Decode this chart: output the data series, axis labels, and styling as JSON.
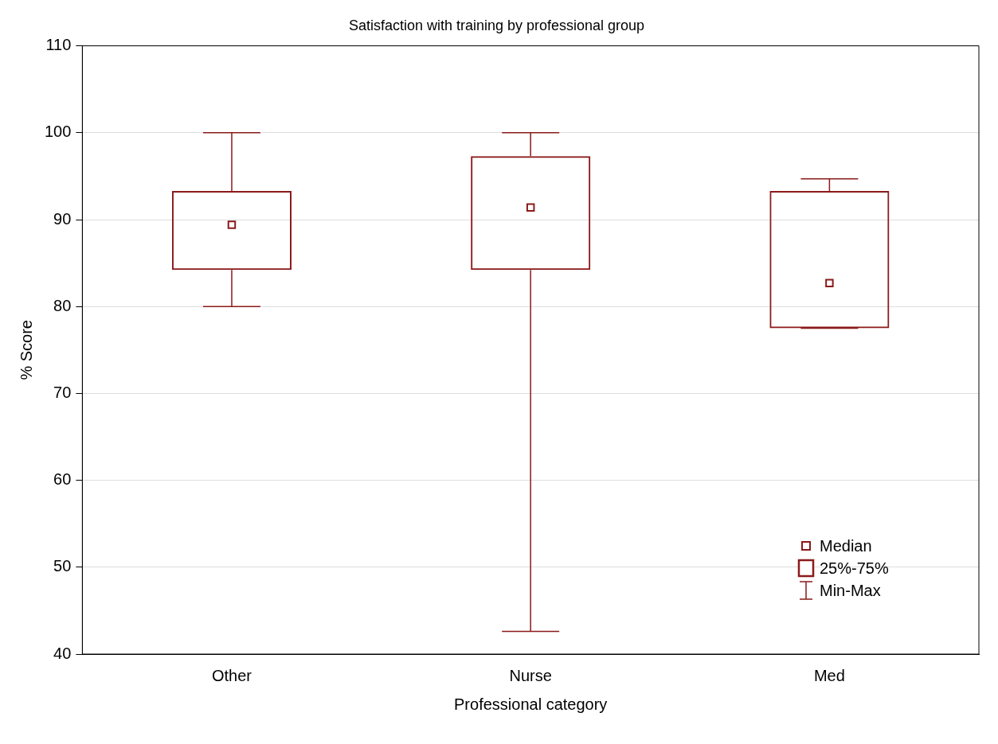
{
  "chart_data": {
    "type": "box",
    "title": "Satisfaction with training by professional group",
    "xlabel": "Professional category",
    "ylabel": "% Score",
    "categories": [
      "Other",
      "Nurse",
      "Med"
    ],
    "boxes": [
      {
        "low": 80,
        "q1": 84.2,
        "median": 89.4,
        "q3": 93.3,
        "high": 100
      },
      {
        "low": 42.6,
        "q1": 84.2,
        "median": 91.4,
        "q3": 97.3,
        "high": 100
      },
      {
        "low": 77.5,
        "q1": 77.5,
        "median": 82.7,
        "q3": 93.3,
        "high": 94.7
      }
    ],
    "color": "#8b1a1a",
    "ylim": [
      40,
      110
    ],
    "yticks": [
      40,
      50,
      60,
      70,
      80,
      90,
      100,
      110
    ],
    "grid": "y",
    "marker": "square",
    "annotations": [
      "Median",
      "25%-75%",
      "Min-Max"
    ]
  }
}
